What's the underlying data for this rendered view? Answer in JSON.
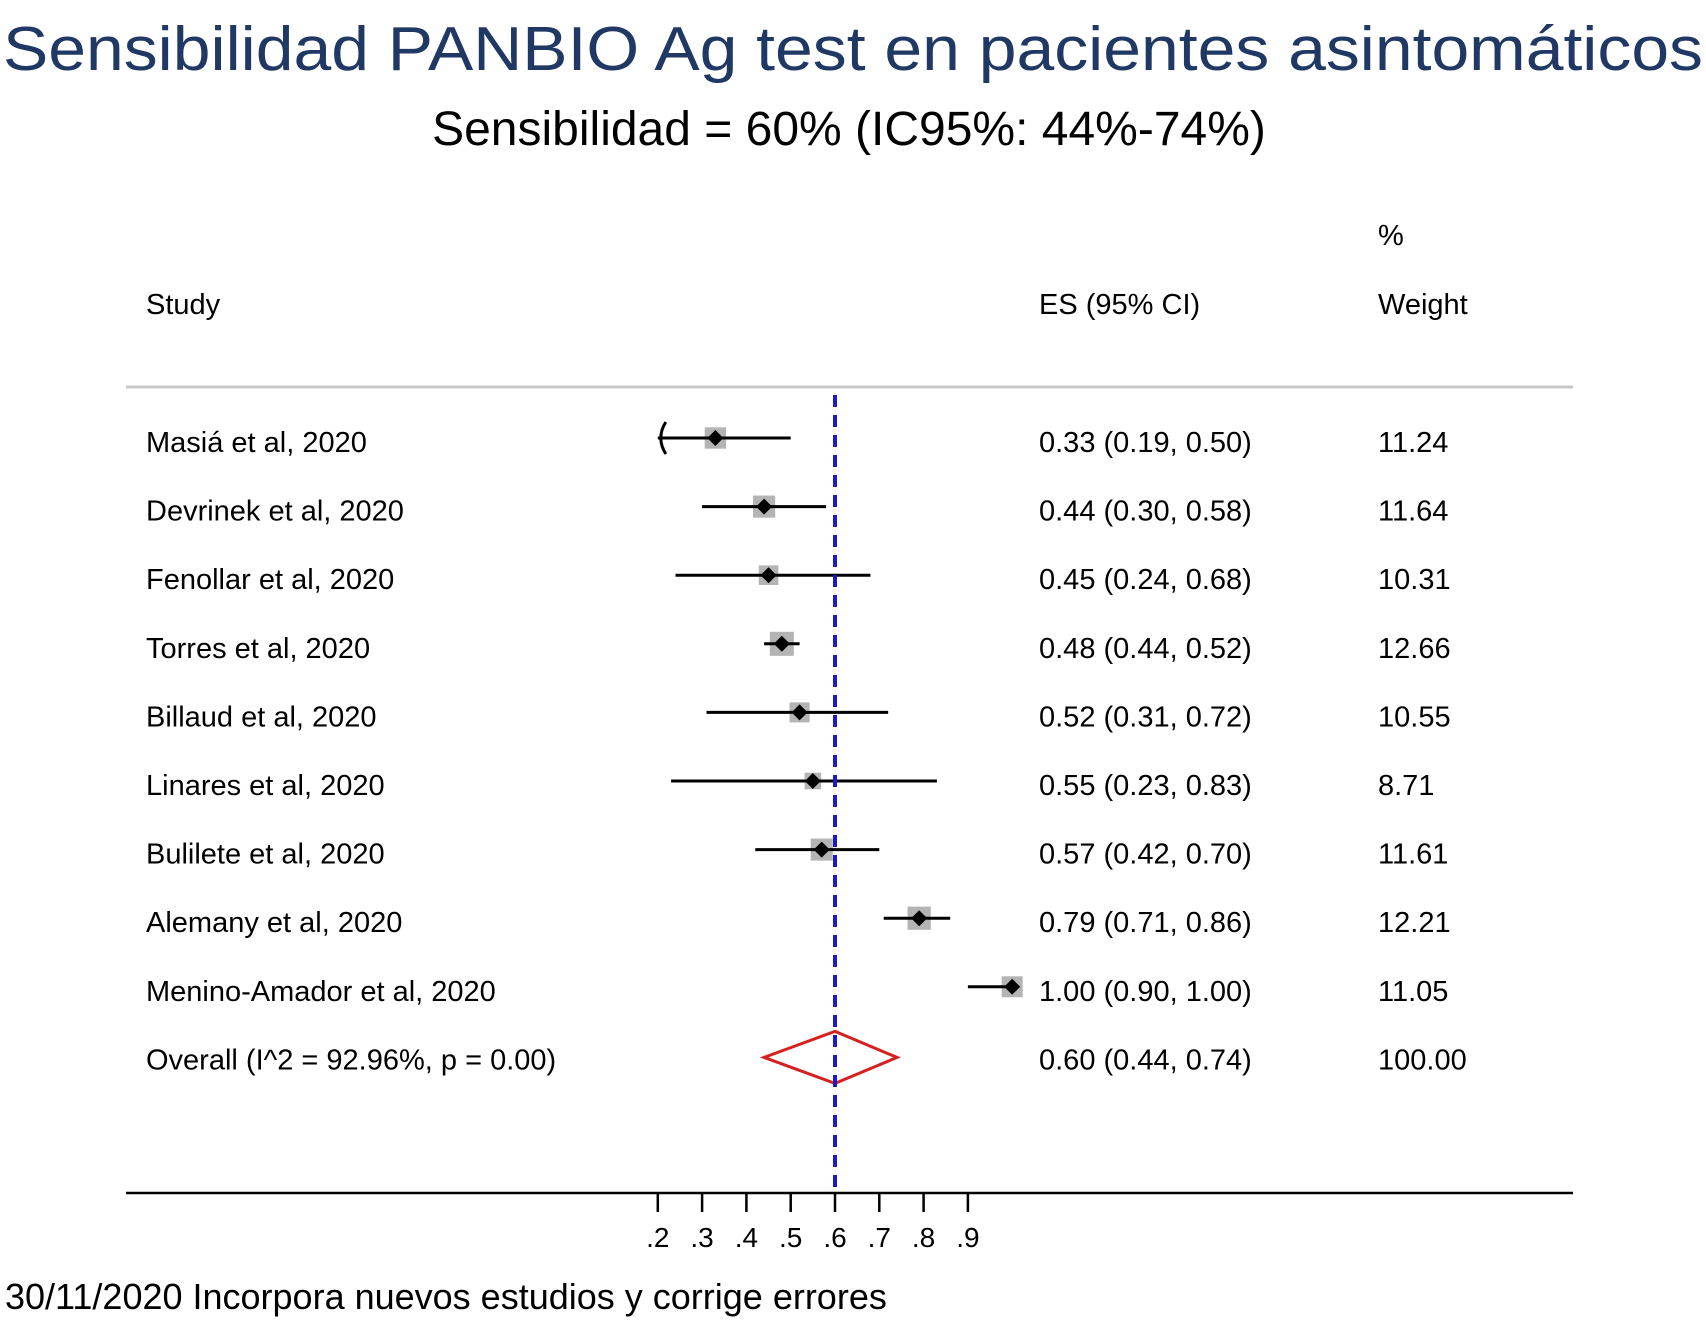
{
  "chart_data": {
    "type": "forest",
    "title": "Sensibilidad PANBIO Ag test en pacientes asintomáticos",
    "subtitle": "Sensibilidad = 60% (IC95%: 44%-74%)",
    "headers": {
      "study": "Study",
      "es": "ES (95% CI)",
      "weight_top": "%",
      "weight": "Weight"
    },
    "studies": [
      {
        "name": "Masiá et al, 2020",
        "es": 0.33,
        "lo": 0.19,
        "hi": 0.5,
        "label": "0.33 (0.19, 0.50)",
        "weight": "11.24"
      },
      {
        "name": "Devrinek et al, 2020",
        "es": 0.44,
        "lo": 0.3,
        "hi": 0.58,
        "label": "0.44 (0.30, 0.58)",
        "weight": "11.64"
      },
      {
        "name": "Fenollar et al, 2020",
        "es": 0.45,
        "lo": 0.24,
        "hi": 0.68,
        "label": "0.45 (0.24, 0.68)",
        "weight": "10.31"
      },
      {
        "name": "Torres et al, 2020",
        "es": 0.48,
        "lo": 0.44,
        "hi": 0.52,
        "label": "0.48 (0.44, 0.52)",
        "weight": "12.66"
      },
      {
        "name": "Billaud et al, 2020",
        "es": 0.52,
        "lo": 0.31,
        "hi": 0.72,
        "label": "0.52 (0.31, 0.72)",
        "weight": "10.55"
      },
      {
        "name": "Linares et al, 2020",
        "es": 0.55,
        "lo": 0.23,
        "hi": 0.83,
        "label": "0.55 (0.23, 0.83)",
        "weight": "8.71"
      },
      {
        "name": "Bulilete et al, 2020",
        "es": 0.57,
        "lo": 0.42,
        "hi": 0.7,
        "label": "0.57 (0.42, 0.70)",
        "weight": "11.61"
      },
      {
        "name": "Alemany et al, 2020",
        "es": 0.79,
        "lo": 0.71,
        "hi": 0.86,
        "label": "0.79 (0.71, 0.86)",
        "weight": "12.21"
      },
      {
        "name": "Menino-Amador et al, 2020",
        "es": 1.0,
        "lo": 0.9,
        "hi": 1.0,
        "label": "1.00 (0.90, 1.00)",
        "weight": "11.05"
      }
    ],
    "overall": {
      "name": "Overall  (I^2 = 92.96%, p = 0.00)",
      "es": 0.6,
      "lo": 0.44,
      "hi": 0.74,
      "label": "0.60 (0.44, 0.74)",
      "weight": "100.00"
    },
    "xticks": [
      0.2,
      0.3,
      0.4,
      0.5,
      0.6,
      0.7,
      0.8,
      0.9
    ],
    "xtick_labels": [
      ".2",
      ".3",
      ".4",
      ".5",
      ".6",
      ".7",
      ".8",
      ".9"
    ],
    "xlim": [
      0.2,
      1.0
    ],
    "reference_line": 0.6,
    "colors": {
      "title": "#1f3864",
      "reference": "#1a1ac8",
      "overall": "#d62020",
      "box": "#b4b4b4",
      "ink": "#000000"
    }
  },
  "footer": "30/11/2020 Incorpora nuevos estudios y corrige errores"
}
